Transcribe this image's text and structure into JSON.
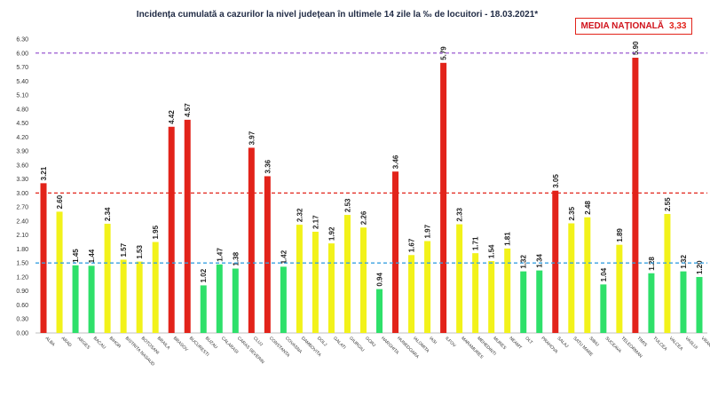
{
  "chart_data": {
    "type": "bar",
    "title": "Incidența cumulată a cazurilor la nivel județean în ultimele 14 zile la ‰ de locuitori - 18.03.2021*",
    "xlabel": "",
    "ylabel": "",
    "ylim": [
      0,
      6.3
    ],
    "yticks": [
      "0.00",
      "0.30",
      "0.60",
      "0.90",
      "1.20",
      "1.50",
      "1.80",
      "2.10",
      "2.40",
      "2.70",
      "3.00",
      "3.30",
      "3.60",
      "3.90",
      "4.20",
      "4.50",
      "4.80",
      "5.10",
      "5.40",
      "5.70",
      "6.00",
      "6.30"
    ],
    "categories": [
      "ALBA",
      "ARAD",
      "ARGES",
      "BACAU",
      "BIHOR",
      "BISTRITA NASAUD",
      "BOTOSANI",
      "BRAILA",
      "BRASOV",
      "BUCURESTI",
      "BUZAU",
      "CALARASI",
      "CARAS SEVERIN",
      "CLUJ",
      "CONSTANTA",
      "COVASNA",
      "DAMBOVITA",
      "DOLJ",
      "GALATI",
      "GIURGIU",
      "GORJ",
      "HARGHITA",
      "HUNEDOARA",
      "IALOMITA",
      "IASI",
      "ILFOV",
      "MARAMURES",
      "MEHEDINTI",
      "MURES",
      "NEAMT",
      "OLT",
      "PRAHOVA",
      "SALAJ",
      "SATU MARE",
      "SIBIU",
      "SUCEAVA",
      "TELEORMAN",
      "TIMIS",
      "TULCEA",
      "VALCEA",
      "VASLUI",
      "VRANCEA"
    ],
    "values": [
      3.21,
      2.6,
      1.45,
      1.44,
      2.34,
      1.57,
      1.53,
      1.95,
      4.42,
      4.57,
      1.02,
      1.47,
      1.38,
      3.97,
      3.36,
      1.42,
      2.32,
      2.17,
      1.92,
      2.53,
      2.26,
      0.94,
      3.46,
      1.67,
      1.97,
      5.79,
      2.33,
      1.71,
      1.54,
      1.81,
      1.32,
      1.34,
      3.05,
      2.35,
      2.48,
      1.04,
      1.89,
      5.9,
      1.28,
      2.55,
      1.32,
      1.2
    ],
    "value_labels": [
      "3.21",
      "2.60",
      "1.45",
      "1.44",
      "2.34",
      "1.57",
      "1.53",
      "1.95",
      "4.42",
      "4.57",
      "1.02",
      "1.47",
      "1.38",
      "3.97",
      "3.36",
      "1.42",
      "2.32",
      "2.17",
      "1.92",
      "2.53",
      "2.26",
      "0.94",
      "3.46",
      "1.67",
      "1.97",
      "5.79",
      "2.33",
      "1.71",
      "1.54",
      "1.81",
      "1.32",
      "1.34",
      "3.05",
      "2.35",
      "2.48",
      "1.04",
      "1.89",
      "5.90",
      "1.28",
      "2.55",
      "1.32",
      "1.20"
    ],
    "reference_lines": [
      {
        "value": 6.0,
        "color": "#9b59d0"
      },
      {
        "value": 3.0,
        "color": "#e2231a"
      },
      {
        "value": 1.5,
        "color": "#3aa0e0"
      }
    ],
    "thresholds": {
      "green_max": 1.5,
      "yellow_max": 3.0
    },
    "colors": {
      "green": "#2ee06a",
      "yellow": "#f2f21a",
      "red": "#e2231a"
    },
    "grid": false,
    "legend": "none",
    "national_average": {
      "label": "MEDIA NAȚIONALĂ",
      "value": "3,33"
    }
  }
}
